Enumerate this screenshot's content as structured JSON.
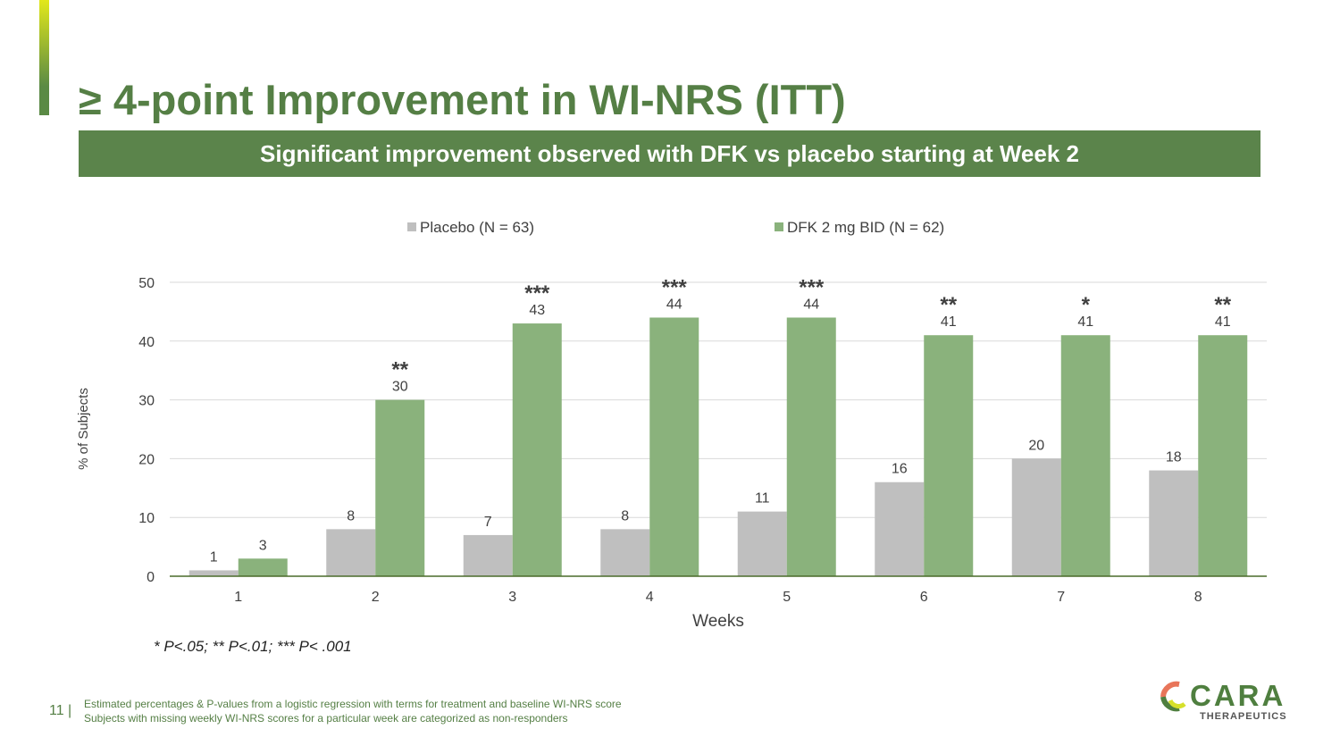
{
  "title": "≥ 4-point Improvement in WI-NRS (ITT)",
  "banner": "Significant improvement observed with DFK vs placebo starting at Week 2",
  "chart_data": {
    "type": "bar",
    "xlabel": "Weeks",
    "ylabel": "% of Subjects",
    "ylim": [
      0,
      50
    ],
    "yticks": [
      0,
      10,
      20,
      30,
      40,
      50
    ],
    "grid": true,
    "legend": "top",
    "categories": [
      "1",
      "2",
      "3",
      "4",
      "5",
      "6",
      "7",
      "8"
    ],
    "series": [
      {
        "name": "Placebo (N = 63)",
        "color": "#bfbfbf",
        "values": [
          1,
          8,
          7,
          8,
          11,
          16,
          20,
          18
        ]
      },
      {
        "name": "DFK 2 mg BID (N = 62)",
        "color": "#8ab27c",
        "values": [
          3,
          30,
          43,
          44,
          44,
          41,
          41,
          41
        ]
      }
    ],
    "significance": [
      "",
      "**",
      "***",
      "***",
      "***",
      "**",
      "*",
      "**"
    ],
    "footnote": "* P<.05; ** P<.01; *** P< .001"
  },
  "footer": {
    "page": "11",
    "line1": "Estimated percentages & P-values from a logistic regression with terms for treatment and baseline WI-NRS score",
    "line2": "Subjects with  missing weekly WI-NRS scores for a particular week are categorized as non-responders"
  },
  "logo": {
    "name": "CARA",
    "sub": "THERAPEUTICS",
    "tm": "™"
  }
}
